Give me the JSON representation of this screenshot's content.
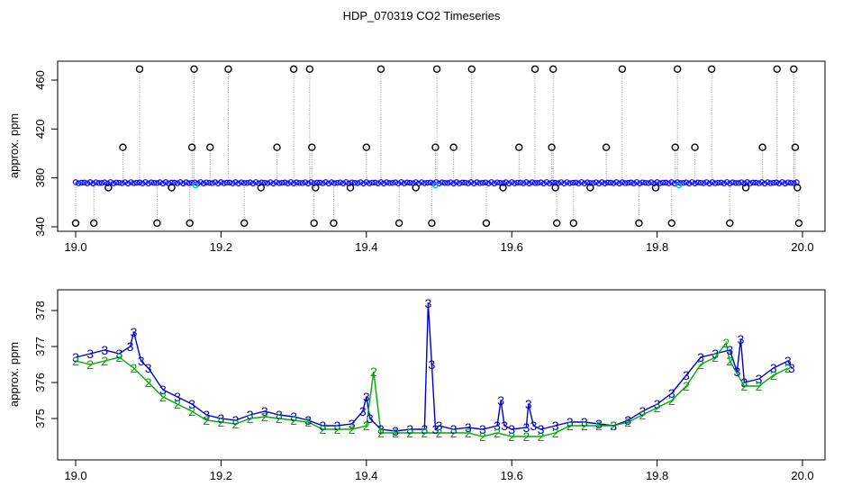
{
  "title": "HDP_070319  CO2 Timeseries",
  "chart_data": [
    {
      "type": "scatter",
      "ylabel": "approx. ppm",
      "xlim": [
        19.0,
        20.0
      ],
      "ylim": [
        338,
        472
      ],
      "xticks": [
        19.0,
        19.2,
        19.4,
        19.6,
        19.8,
        20.0
      ],
      "xtick_labels": [
        "19.0",
        "19.2",
        "19.4",
        "19.6",
        "19.8",
        "20.0"
      ],
      "yticks": [
        340,
        380,
        420,
        460
      ],
      "ytick_labels": [
        "340",
        "380",
        "420",
        "460"
      ],
      "colors": {
        "baseline": "#0000ff",
        "outlier_marker": "#000000",
        "connector": "#999999",
        "highlight": "#00c0c0"
      },
      "baseline_level": 376,
      "outlier_points": [
        {
          "x": 19.0,
          "y": 343
        },
        {
          "x": 19.025,
          "y": 343
        },
        {
          "x": 19.045,
          "y": 372
        },
        {
          "x": 19.065,
          "y": 405
        },
        {
          "x": 19.088,
          "y": 469
        },
        {
          "x": 19.112,
          "y": 343
        },
        {
          "x": 19.132,
          "y": 372
        },
        {
          "x": 19.157,
          "y": 343
        },
        {
          "x": 19.16,
          "y": 405
        },
        {
          "x": 19.163,
          "y": 469
        },
        {
          "x": 19.185,
          "y": 405
        },
        {
          "x": 19.21,
          "y": 469
        },
        {
          "x": 19.232,
          "y": 343
        },
        {
          "x": 19.255,
          "y": 372
        },
        {
          "x": 19.277,
          "y": 405
        },
        {
          "x": 19.3,
          "y": 469
        },
        {
          "x": 19.322,
          "y": 469
        },
        {
          "x": 19.325,
          "y": 405
        },
        {
          "x": 19.328,
          "y": 343
        },
        {
          "x": 19.33,
          "y": 372
        },
        {
          "x": 19.355,
          "y": 343
        },
        {
          "x": 19.378,
          "y": 372
        },
        {
          "x": 19.4,
          "y": 405
        },
        {
          "x": 19.42,
          "y": 469
        },
        {
          "x": 19.445,
          "y": 343
        },
        {
          "x": 19.468,
          "y": 372
        },
        {
          "x": 19.49,
          "y": 343
        },
        {
          "x": 19.495,
          "y": 405
        },
        {
          "x": 19.497,
          "y": 469
        },
        {
          "x": 19.52,
          "y": 405
        },
        {
          "x": 19.545,
          "y": 469
        },
        {
          "x": 19.565,
          "y": 343
        },
        {
          "x": 19.588,
          "y": 372
        },
        {
          "x": 19.61,
          "y": 405
        },
        {
          "x": 19.632,
          "y": 469
        },
        {
          "x": 19.655,
          "y": 405
        },
        {
          "x": 19.657,
          "y": 469
        },
        {
          "x": 19.66,
          "y": 372
        },
        {
          "x": 19.662,
          "y": 343
        },
        {
          "x": 19.685,
          "y": 343
        },
        {
          "x": 19.708,
          "y": 372
        },
        {
          "x": 19.73,
          "y": 405
        },
        {
          "x": 19.752,
          "y": 469
        },
        {
          "x": 19.775,
          "y": 343
        },
        {
          "x": 19.798,
          "y": 372
        },
        {
          "x": 19.82,
          "y": 343
        },
        {
          "x": 19.825,
          "y": 405
        },
        {
          "x": 19.828,
          "y": 469
        },
        {
          "x": 19.852,
          "y": 405
        },
        {
          "x": 19.875,
          "y": 469
        },
        {
          "x": 19.9,
          "y": 343
        },
        {
          "x": 19.922,
          "y": 372
        },
        {
          "x": 19.945,
          "y": 405
        },
        {
          "x": 19.965,
          "y": 469
        },
        {
          "x": 19.988,
          "y": 469
        },
        {
          "x": 19.99,
          "y": 405
        },
        {
          "x": 19.993,
          "y": 372
        },
        {
          "x": 19.995,
          "y": 343
        }
      ]
    },
    {
      "type": "line",
      "ylabel": "approx. ppm",
      "xlim": [
        19.0,
        20.0
      ],
      "ylim": [
        374.0,
        378.5
      ],
      "xticks": [
        19.0,
        19.2,
        19.4,
        19.6,
        19.8,
        20.0
      ],
      "xtick_labels": [
        "19.0",
        "19.2",
        "19.4",
        "19.6",
        "19.8",
        "20.0"
      ],
      "yticks": [
        375,
        376,
        377,
        378
      ],
      "ytick_labels": [
        "375",
        "376",
        "377",
        "378"
      ],
      "series": [
        {
          "marker": "3",
          "color": "#0000cc",
          "x": [
            19.0,
            19.02,
            19.04,
            19.06,
            19.075,
            19.08,
            19.09,
            19.1,
            19.12,
            19.14,
            19.16,
            19.18,
            19.2,
            19.22,
            19.24,
            19.26,
            19.28,
            19.3,
            19.32,
            19.34,
            19.36,
            19.38,
            19.395,
            19.4,
            19.405,
            19.42,
            19.44,
            19.46,
            19.48,
            19.485,
            19.49,
            19.495,
            19.5,
            19.52,
            19.54,
            19.56,
            19.58,
            19.585,
            19.59,
            19.6,
            19.62,
            19.623,
            19.63,
            19.64,
            19.66,
            19.68,
            19.7,
            19.72,
            19.74,
            19.76,
            19.78,
            19.8,
            19.82,
            19.84,
            19.86,
            19.88,
            19.9,
            19.91,
            19.915,
            19.92,
            19.94,
            19.96,
            19.98,
            19.985
          ],
          "y": [
            376.7,
            376.8,
            376.9,
            376.8,
            377.0,
            377.4,
            376.6,
            376.4,
            375.8,
            375.6,
            375.4,
            375.1,
            375.0,
            374.95,
            375.1,
            375.2,
            375.1,
            375.05,
            374.95,
            374.8,
            374.8,
            374.85,
            375.2,
            375.6,
            375.0,
            374.7,
            374.65,
            374.7,
            374.7,
            378.2,
            376.5,
            374.7,
            374.8,
            374.7,
            374.75,
            374.7,
            374.8,
            375.5,
            374.8,
            374.7,
            374.75,
            375.4,
            374.8,
            374.7,
            374.8,
            374.9,
            374.9,
            374.85,
            374.8,
            374.95,
            375.2,
            375.4,
            375.7,
            376.2,
            376.7,
            376.8,
            376.9,
            376.3,
            377.2,
            376.0,
            376.1,
            376.4,
            376.6,
            376.4
          ]
        },
        {
          "marker": "2",
          "color": "#00aa00",
          "x": [
            19.0,
            19.02,
            19.04,
            19.06,
            19.08,
            19.1,
            19.12,
            19.14,
            19.16,
            19.18,
            19.2,
            19.22,
            19.24,
            19.26,
            19.28,
            19.3,
            19.32,
            19.34,
            19.36,
            19.38,
            19.4,
            19.41,
            19.42,
            19.44,
            19.46,
            19.48,
            19.5,
            19.52,
            19.54,
            19.56,
            19.58,
            19.6,
            19.62,
            19.64,
            19.66,
            19.68,
            19.7,
            19.72,
            19.74,
            19.76,
            19.78,
            19.8,
            19.82,
            19.84,
            19.86,
            19.88,
            19.895,
            19.9,
            19.92,
            19.94,
            19.96,
            19.98
          ],
          "y": [
            376.6,
            376.5,
            376.6,
            376.7,
            376.4,
            376.0,
            375.6,
            375.4,
            375.2,
            374.95,
            374.9,
            374.85,
            375.0,
            375.05,
            375.0,
            374.95,
            374.9,
            374.7,
            374.7,
            374.7,
            374.8,
            376.3,
            374.6,
            374.6,
            374.6,
            374.6,
            374.6,
            374.6,
            374.6,
            374.5,
            374.6,
            374.5,
            374.5,
            374.5,
            374.6,
            374.8,
            374.8,
            374.8,
            374.8,
            374.9,
            375.1,
            375.3,
            375.5,
            375.9,
            376.5,
            376.7,
            377.1,
            376.6,
            375.9,
            375.9,
            376.2,
            376.4
          ]
        }
      ]
    }
  ]
}
